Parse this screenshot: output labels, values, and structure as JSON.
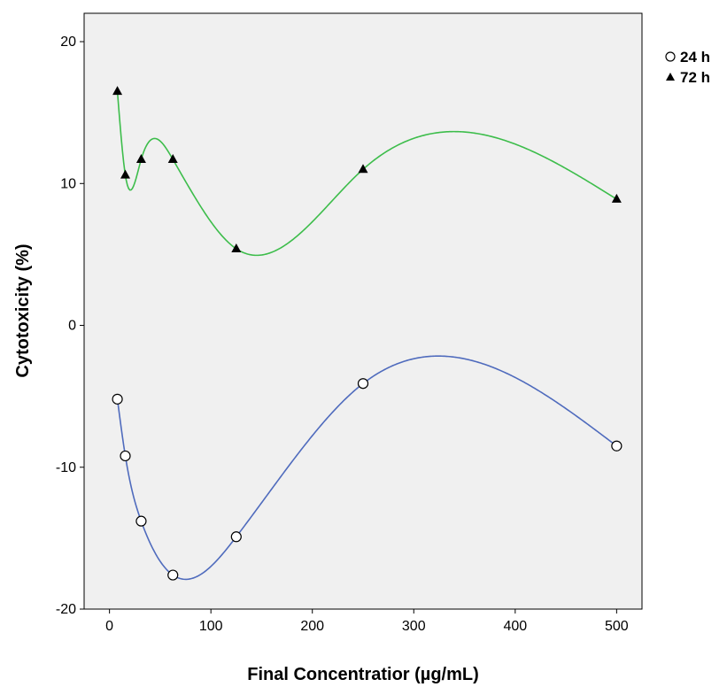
{
  "chart_data": {
    "type": "scatter",
    "xlabel": "Final Concentratior  (µg/mL)",
    "ylabel": "Cytotoxicity (%)",
    "xlim": [
      -25,
      525
    ],
    "ylim": [
      -20,
      22
    ],
    "x_ticks": [
      0,
      100,
      200,
      300,
      400,
      500
    ],
    "y_ticks": [
      -20,
      -10,
      0,
      10,
      20
    ],
    "grid": false,
    "legend_placement": "top-right, outside plot",
    "series": [
      {
        "name": "24 h",
        "marker": "circle-open",
        "color": "#4f6bbd",
        "x": [
          7.8,
          15.6,
          31.25,
          62.5,
          125,
          250,
          500
        ],
        "y": [
          -5.2,
          -9.2,
          -13.8,
          -17.6,
          -14.9,
          -4.1,
          -8.5
        ]
      },
      {
        "name": "72 h",
        "marker": "triangle-filled",
        "color": "#3dbd4b",
        "x": [
          7.8,
          15.6,
          31.25,
          62.5,
          125,
          250,
          500
        ],
        "y": [
          16.5,
          10.6,
          11.7,
          11.7,
          5.4,
          11.0,
          8.9
        ]
      }
    ]
  },
  "colors": {
    "plot_background": "#f0f0f0",
    "axis": "#000000"
  }
}
